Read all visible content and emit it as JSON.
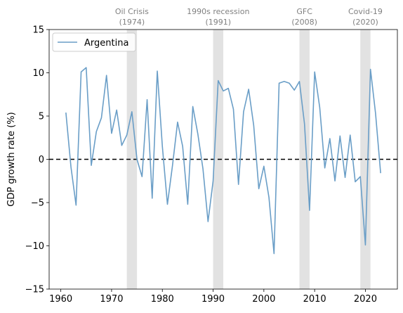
{
  "chart_data": {
    "type": "line",
    "ylabel": "GDP growth rate (%)",
    "xlim": [
      1957.7,
      2026.3
    ],
    "ylim": [
      -15,
      15
    ],
    "xticks": [
      1960,
      1970,
      1980,
      1990,
      2000,
      2010,
      2020
    ],
    "yticks": [
      -15,
      -10,
      -5,
      0,
      5,
      10,
      15
    ],
    "reference_line": {
      "y": 0,
      "style": "dashed",
      "color": "#000000"
    },
    "legend": {
      "position": "top-left",
      "entries": [
        "Argentina"
      ]
    },
    "colors": {
      "line": "#6a9ec7",
      "band": "#e2e2e2",
      "crisis_text": "#808080"
    },
    "crises": [
      {
        "label_line1": "Oil Crisis",
        "label_line2": "(1974)",
        "start": 1973,
        "end": 1975
      },
      {
        "label_line1": "1990s recession",
        "label_line2": "(1991)",
        "start": 1990,
        "end": 1992
      },
      {
        "label_line1": "GFC",
        "label_line2": "(2008)",
        "start": 2007,
        "end": 2009
      },
      {
        "label_line1": "Covid-19",
        "label_line2": "(2020)",
        "start": 2019,
        "end": 2021
      }
    ],
    "series": [
      {
        "name": "Argentina",
        "x": [
          1961,
          1962,
          1963,
          1964,
          1965,
          1966,
          1967,
          1968,
          1969,
          1970,
          1971,
          1972,
          1973,
          1974,
          1975,
          1976,
          1977,
          1978,
          1979,
          1980,
          1981,
          1982,
          1983,
          1984,
          1985,
          1986,
          1987,
          1988,
          1989,
          1990,
          1991,
          1992,
          1993,
          1994,
          1995,
          1996,
          1997,
          1998,
          1999,
          2000,
          2001,
          2002,
          2003,
          2004,
          2005,
          2006,
          2007,
          2008,
          2009,
          2010,
          2011,
          2012,
          2013,
          2014,
          2015,
          2016,
          2017,
          2018,
          2019,
          2020,
          2021,
          2022,
          2023
        ],
        "values": [
          5.4,
          -0.9,
          -5.3,
          10.1,
          10.6,
          -0.7,
          3.2,
          4.8,
          9.7,
          3.0,
          5.7,
          1.6,
          2.8,
          5.5,
          0.0,
          -2.0,
          6.9,
          -4.5,
          10.2,
          1.5,
          -5.2,
          -0.7,
          4.3,
          1.5,
          -5.2,
          6.1,
          2.9,
          -1.1,
          -7.2,
          -2.5,
          9.1,
          7.9,
          8.2,
          5.8,
          -2.9,
          5.5,
          8.1,
          3.9,
          -3.4,
          -0.8,
          -4.4,
          -10.9,
          8.8,
          9.0,
          8.8,
          8.0,
          9.0,
          4.1,
          -5.9,
          10.1,
          6.0,
          -1.0,
          2.4,
          -2.5,
          2.7,
          -2.1,
          2.8,
          -2.6,
          -2.0,
          -9.9,
          10.4,
          5.3,
          -1.6
        ]
      }
    ]
  }
}
